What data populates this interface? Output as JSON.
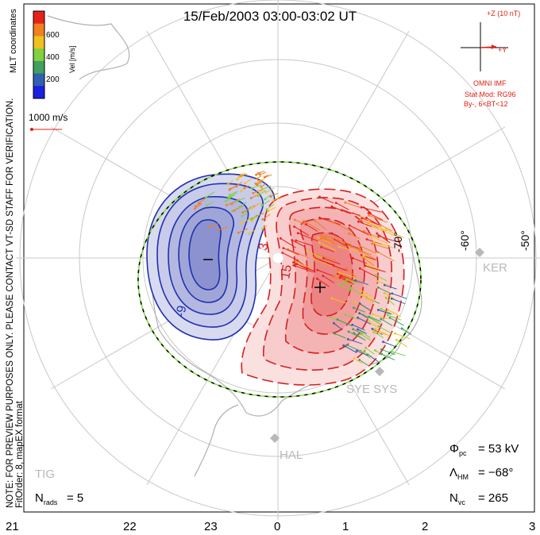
{
  "title": "15/Feb/2003 03:00-03:02 UT",
  "colorbar": {
    "ticks": [
      "600",
      "400",
      "200"
    ],
    "unit_label": "Vel [m/s]",
    "colors": [
      "#e8201a",
      "#f08020",
      "#f0c020",
      "#80d040",
      "#40a060",
      "#3060b0",
      "#1a20e0"
    ]
  },
  "coord_label": "MLT coordinates",
  "side_note_1": "NOTE: FOR PREVIEW PURPOSES ONLY. PLEASE CONTACT VT-SD STAFF FOR VERIFICATION.",
  "side_note_2": "FitOrder: 8, mapEX format",
  "ref_vector_label": "1000 m/s",
  "imf": {
    "z_label": "+Z (10 nT)",
    "y_label": "+Y",
    "source": "OMNI IMF",
    "stat_mod": "Stat Mod: RG96",
    "condition": "By-, 6<BT<12",
    "color": "#e02010"
  },
  "lat_labels": [
    "-70°",
    "-60°",
    "-50°"
  ],
  "contour_labels": {
    "neg": "-9",
    "pos1": "3",
    "pos2": "15"
  },
  "stations": [
    "KER",
    "SYE SYS",
    "HAL",
    "TIG"
  ],
  "stats": {
    "phi_pc": "= 53 kV",
    "lambda_hm": "= −68°",
    "n_vc": "= 265",
    "n_rads": "= 5"
  },
  "mlt_axis": [
    "21",
    "22",
    "23",
    "0",
    "1",
    "2",
    "3"
  ],
  "colors": {
    "positive_contour": "#d42020",
    "negative_contour": "#2030b0",
    "positive_fill": "#f4a8a8",
    "negative_fill": "#a8acd8",
    "boundary_dash": "#80e040",
    "grid": "#c8c8c8",
    "coast": "#b0b0b0"
  }
}
